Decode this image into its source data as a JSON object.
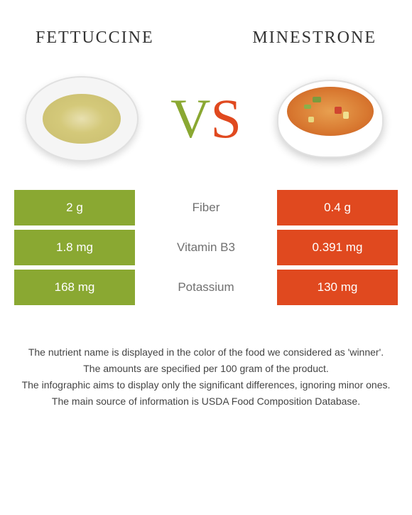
{
  "header": {
    "left_title": "FETTUCCINE",
    "right_title": "MINESTRONE"
  },
  "vs": {
    "v": "V",
    "s": "S",
    "v_color": "#8aa832",
    "s_color": "#e0491f"
  },
  "colors": {
    "left_bg": "#8aa832",
    "right_bg": "#e0491f",
    "label_text": "#707070",
    "value_text": "#ffffff"
  },
  "nutrients": [
    {
      "left": "2 g",
      "label": "Fiber",
      "right": "0.4 g"
    },
    {
      "left": "1.8 mg",
      "label": "Vitamin B3",
      "right": "0.391 mg"
    },
    {
      "left": "168 mg",
      "label": "Potassium",
      "right": "130 mg"
    }
  ],
  "footer": {
    "line1": "The nutrient name is displayed in the color of the food we considered as 'winner'.",
    "line2": "The amounts are specified per 100 gram of the product.",
    "line3": "The infographic aims to display only the significant differences, ignoring minor ones.",
    "line4": "The main source of information is USDA Food Composition Database."
  }
}
